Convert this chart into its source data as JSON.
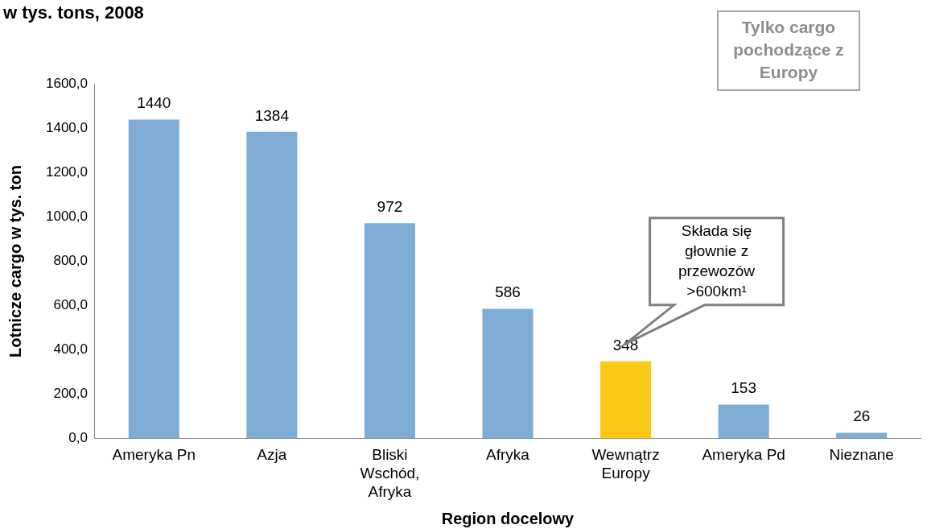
{
  "chart_data": {
    "type": "bar",
    "title": "w tys. tons, 2008",
    "xlabel": "Region docelowy",
    "ylabel": "Lotnicze cargo w tys. ton",
    "categories": [
      "Ameryka Pn",
      "Azja",
      "Bliski Wschód, Afryka",
      "Afryka",
      "Wewnątrz Europy",
      "Ameryka Pd",
      "Nieznane"
    ],
    "values": [
      1440,
      1384,
      972,
      586,
      348,
      153,
      26
    ],
    "colors": [
      "#7facd4",
      "#7facd4",
      "#7facd4",
      "#7facd4",
      "#fcc817",
      "#7facd4",
      "#7facd4"
    ],
    "ylim": [
      0,
      1600
    ],
    "yticks": [
      {
        "value": 0,
        "label": "0,0"
      },
      {
        "value": 200,
        "label": "200,0"
      },
      {
        "value": 400,
        "label": "400,0"
      },
      {
        "value": 600,
        "label": "600,0"
      },
      {
        "value": 800,
        "label": "800,0"
      },
      {
        "value": 1000,
        "label": "1000,0"
      },
      {
        "value": 1200,
        "label": "1200,0"
      },
      {
        "value": 1400,
        "label": "1400,0"
      },
      {
        "value": 1600,
        "label": "1600,0"
      }
    ],
    "data_labels": true,
    "grid": false,
    "legend": false,
    "annotations": [
      "Tylko cargo pochodzące z Europy",
      "Składa się głownie z przewozów >600km¹"
    ]
  }
}
